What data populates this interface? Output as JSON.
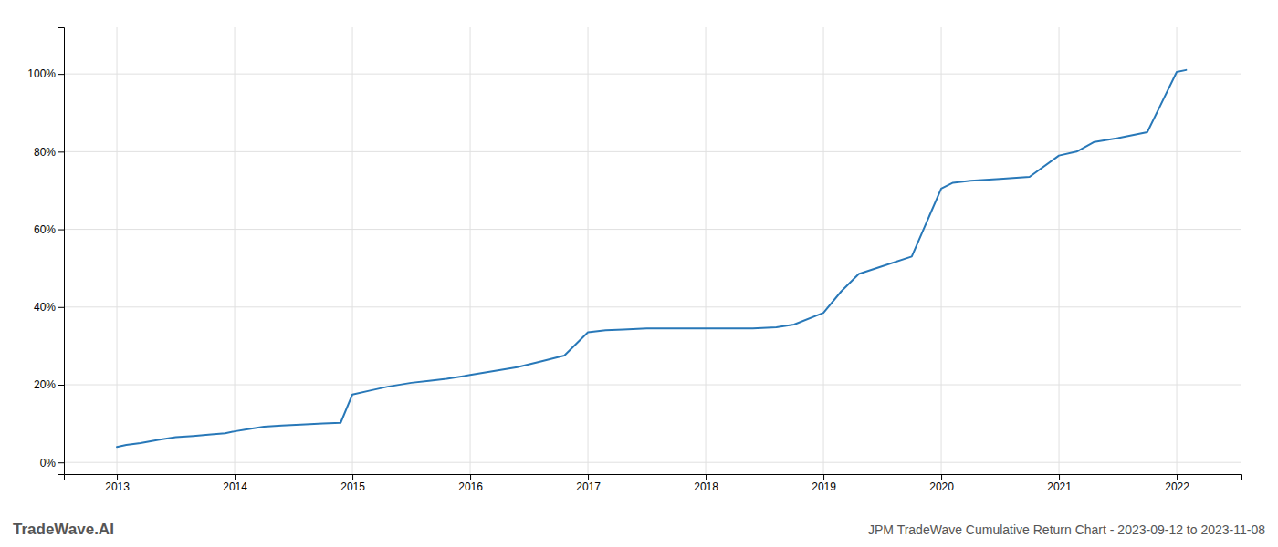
{
  "chart_data": {
    "type": "line",
    "title": "JPM TradeWave Cumulative Return Chart - 2023-09-12 to 2023-11-08",
    "annotations": [
      "TradeWave.AI"
    ],
    "x": [
      2013.0,
      2013.08,
      2013.2,
      2013.35,
      2013.5,
      2013.65,
      2013.8,
      2013.92,
      2014.0,
      2014.1,
      2014.25,
      2014.4,
      2014.6,
      2014.75,
      2014.9,
      2015.0,
      2015.15,
      2015.3,
      2015.5,
      2015.65,
      2015.8,
      2016.0,
      2016.2,
      2016.4,
      2016.6,
      2016.8,
      2017.0,
      2017.15,
      2017.3,
      2017.5,
      2017.75,
      2018.0,
      2018.2,
      2018.4,
      2018.6,
      2018.75,
      2019.0,
      2019.15,
      2019.3,
      2019.5,
      2019.75,
      2020.0,
      2020.1,
      2020.25,
      2020.5,
      2020.75,
      2021.0,
      2021.15,
      2021.3,
      2021.5,
      2021.75,
      2022.0,
      2022.08
    ],
    "values": [
      4.0,
      4.5,
      5.0,
      5.8,
      6.5,
      6.8,
      7.2,
      7.5,
      8.0,
      8.5,
      9.2,
      9.5,
      9.8,
      10.0,
      10.2,
      17.5,
      18.5,
      19.5,
      20.5,
      21.0,
      21.5,
      22.5,
      23.5,
      24.5,
      26.0,
      27.5,
      33.5,
      34.0,
      34.2,
      34.5,
      34.5,
      34.5,
      34.5,
      34.5,
      34.8,
      35.5,
      38.5,
      44.0,
      48.5,
      50.5,
      53.0,
      70.5,
      72.0,
      72.5,
      73.0,
      73.5,
      79.0,
      80.0,
      82.5,
      83.5,
      85.0,
      100.5,
      101.0
    ],
    "color": "#2878b8",
    "xlim": [
      2012.55,
      2022.55
    ],
    "xticks": [
      2013,
      2014,
      2015,
      2016,
      2017,
      2018,
      2019,
      2020,
      2021,
      2022
    ],
    "ylim": [
      -3,
      112
    ],
    "yticks": [
      {
        "value": 0,
        "label": "0%"
      },
      {
        "value": 20,
        "label": "20%"
      },
      {
        "value": 40,
        "label": "40%"
      },
      {
        "value": 60,
        "label": "60%"
      },
      {
        "value": 80,
        "label": "80%"
      },
      {
        "value": 100,
        "label": "100%"
      }
    ],
    "grid": true
  }
}
